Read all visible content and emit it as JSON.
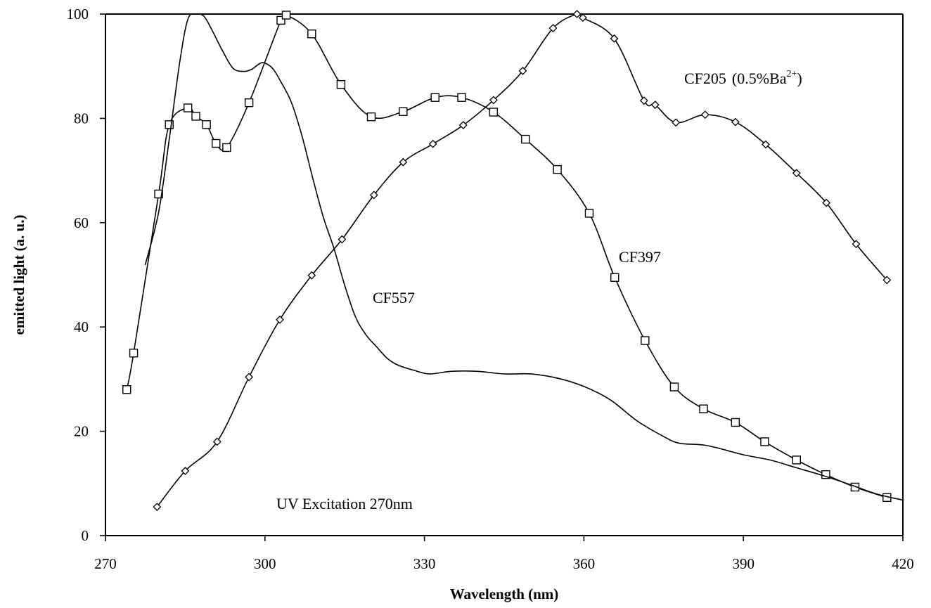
{
  "chart_data": {
    "type": "line",
    "xlabel": "Wavelength (nm)",
    "ylabel": "emitted light (a. u.)",
    "xlim": [
      270,
      420
    ],
    "ylim": [
      0,
      100
    ],
    "x_ticks": [
      "270",
      "300",
      "330",
      "360",
      "390",
      "420"
    ],
    "y_ticks": [
      "0",
      "20",
      "40",
      "60",
      "80",
      "100"
    ],
    "grid": false,
    "annotations": {
      "excitation": "UV Excitation 270nm",
      "cf205_name": "CF205",
      "cf205_detail": "(0.5%Ba",
      "cf205_sup": "2+",
      "cf205_close": ")",
      "cf397": "CF397",
      "cf557": "CF557"
    },
    "series": [
      {
        "name": "CF397",
        "marker": "square",
        "x": [
          274,
          275.3,
          280,
          282,
          285.5,
          287,
          289,
          290.8,
          292.8,
          297,
          303,
          304,
          308.8,
          314.3,
          320,
          326,
          332,
          337,
          343,
          349,
          355,
          361,
          365.8,
          371.5,
          377,
          382.5,
          388.5,
          394,
          400,
          405.5,
          411,
          417
        ],
        "y": [
          28,
          35,
          65.5,
          78.8,
          82,
          80.4,
          78.8,
          75.2,
          74.4,
          83,
          98.8,
          99.8,
          96.2,
          86.5,
          80.3,
          81.3,
          84,
          84,
          81.2,
          76,
          70.2,
          61.8,
          49.5,
          37.4,
          28.5,
          24.3,
          21.7,
          18,
          14.5,
          11.7,
          9.3,
          7.3
        ]
      },
      {
        "name": "CF205 (0.5%Ba2+)",
        "marker": "diamond",
        "x": [
          279.7,
          285,
          291,
          297,
          302.8,
          308.8,
          314.5,
          320.5,
          326,
          331.6,
          337.3,
          343,
          348.5,
          354.2,
          358.7,
          359.8,
          365.7,
          371.3,
          373.4,
          377.3,
          382.8,
          388.5,
          394.2,
          400,
          405.6,
          411.2,
          417
        ],
        "y": [
          5.5,
          12.4,
          18,
          30.4,
          41.4,
          49.9,
          56.8,
          65.3,
          71.6,
          75.1,
          78.7,
          83.5,
          89.1,
          97.3,
          100,
          99.3,
          95.3,
          83.4,
          82.6,
          79.2,
          80.7,
          79.3,
          75,
          69.5,
          63.8,
          55.9,
          49
        ]
      },
      {
        "name": "CF557",
        "marker": "none",
        "x": [
          277.5,
          280,
          282,
          284,
          285.5,
          287,
          288.5,
          290,
          292,
          294,
          296,
          297.5,
          299,
          300,
          301.5,
          303,
          305,
          307,
          309,
          311,
          313,
          315,
          317,
          319,
          321,
          323,
          325,
          328,
          331,
          335,
          340,
          345,
          350,
          355,
          360,
          365,
          370,
          375,
          378,
          383,
          390,
          395,
          400,
          405,
          410,
          415,
          420
        ],
        "y": [
          52,
          62,
          76,
          91,
          99,
          100,
          99.6,
          97,
          93,
          89.6,
          89,
          89.4,
          90.5,
          90.6,
          89.5,
          87,
          83,
          76.5,
          68.5,
          61,
          55,
          48,
          42,
          38.5,
          36.2,
          34,
          32.7,
          31.7,
          31,
          31.5,
          31.5,
          31,
          31,
          30.2,
          28.6,
          26,
          22,
          19,
          17.7,
          17.3,
          15.5,
          14.5,
          13,
          11.5,
          9.8,
          8,
          6.8
        ]
      }
    ]
  }
}
